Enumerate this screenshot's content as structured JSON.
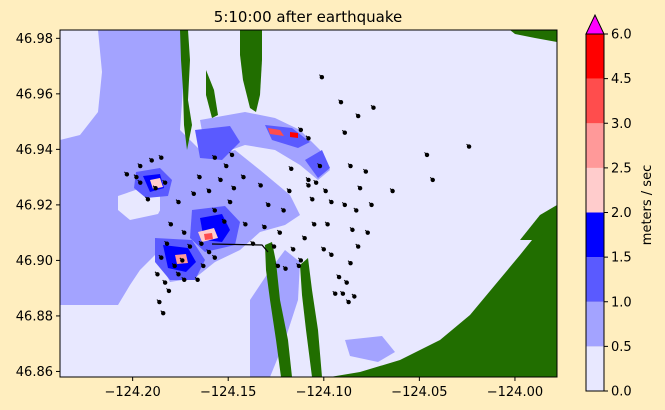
{
  "figure": {
    "background": "#ffeebf",
    "title": "5:10:00 after earthquake"
  },
  "chart_data": {
    "type": "heatmap",
    "title": "5:10:00 after earthquake",
    "xlabel": "",
    "ylabel": "",
    "xlim": [
      -124.238,
      -123.978
    ],
    "ylim": [
      46.858,
      46.983
    ],
    "xticks": [
      -124.2,
      -124.15,
      -124.1,
      -124.05,
      -124.0
    ],
    "xtick_labels": [
      "−124.20",
      "−124.15",
      "−124.10",
      "−124.05",
      "−124.00"
    ],
    "yticks": [
      46.86,
      46.88,
      46.9,
      46.92,
      46.94,
      46.96,
      46.98
    ],
    "ytick_labels": [
      "46.86",
      "46.88",
      "46.90",
      "46.92",
      "46.94",
      "46.96",
      "46.98"
    ],
    "colorbar": {
      "label": "meters / sec",
      "extend": "max",
      "over_color": "#ff00ff",
      "levels": [
        0.0,
        0.5,
        1.0,
        1.5,
        2.0,
        2.5,
        3.0,
        4.5,
        6.0
      ],
      "level_labels": [
        "0.0",
        "0.5",
        "1.0",
        "1.5",
        "2.0",
        "2.5",
        "3.0",
        "4.5",
        "6.0"
      ],
      "colors": [
        "#e8e8ff",
        "#a3a3ff",
        "#5a5aff",
        "#0000ff",
        "#ffcccc",
        "#ff9999",
        "#ff4d4d",
        "#ff0000"
      ]
    },
    "land_color": "#216e00",
    "gauges": [
      [
        -124.198,
        46.93
      ],
      [
        -124.196,
        46.934
      ],
      [
        -124.19,
        46.936
      ],
      [
        -124.185,
        46.937
      ],
      [
        -124.188,
        46.926
      ],
      [
        -124.192,
        46.922
      ],
      [
        -124.203,
        46.931
      ],
      [
        -124.196,
        46.928
      ],
      [
        -124.183,
        46.928
      ],
      [
        -124.176,
        46.921
      ],
      [
        -124.18,
        46.913
      ],
      [
        -124.173,
        46.91
      ],
      [
        -124.182,
        46.906
      ],
      [
        -124.185,
        46.901
      ],
      [
        -124.187,
        46.895
      ],
      [
        -124.183,
        46.892
      ],
      [
        -124.176,
        46.895
      ],
      [
        -124.174,
        46.9
      ],
      [
        -124.178,
        46.898
      ],
      [
        -124.181,
        46.889
      ],
      [
        -124.186,
        46.885
      ],
      [
        -124.184,
        46.881
      ],
      [
        -124.173,
        46.893
      ],
      [
        -124.17,
        46.905
      ],
      [
        -124.164,
        46.906
      ],
      [
        -124.16,
        46.903
      ],
      [
        -124.157,
        46.901
      ],
      [
        -124.163,
        46.898
      ],
      [
        -124.166,
        46.893
      ],
      [
        -124.168,
        46.924
      ],
      [
        -124.165,
        46.93
      ],
      [
        -124.16,
        46.925
      ],
      [
        -124.157,
        46.918
      ],
      [
        -124.152,
        46.914
      ],
      [
        -124.149,
        46.921
      ],
      [
        -124.154,
        46.929
      ],
      [
        -124.147,
        46.926
      ],
      [
        -124.151,
        46.934
      ],
      [
        -124.157,
        46.937
      ],
      [
        -124.148,
        46.938
      ],
      [
        -124.142,
        46.93
      ],
      [
        -124.141,
        46.913
      ],
      [
        -124.137,
        46.906
      ],
      [
        -124.133,
        46.927
      ],
      [
        -124.129,
        46.92
      ],
      [
        -124.131,
        46.912
      ],
      [
        -124.126,
        46.905
      ],
      [
        -124.123,
        46.91
      ],
      [
        -124.121,
        46.918
      ],
      [
        -124.118,
        46.925
      ],
      [
        -124.124,
        46.898
      ],
      [
        -124.116,
        46.904
      ],
      [
        -124.12,
        46.897
      ],
      [
        -124.113,
        46.898
      ],
      [
        -124.108,
        46.929
      ],
      [
        -124.106,
        46.922
      ],
      [
        -124.105,
        46.913
      ],
      [
        -124.11,
        46.908
      ],
      [
        -124.1,
        46.904
      ],
      [
        -124.098,
        46.913
      ],
      [
        -124.096,
        46.902
      ],
      [
        -124.092,
        46.894
      ],
      [
        -124.09,
        46.888
      ],
      [
        -124.088,
        46.892
      ],
      [
        -124.086,
        46.899
      ],
      [
        -124.094,
        46.888
      ],
      [
        -124.087,
        46.885
      ],
      [
        -124.084,
        46.887
      ],
      [
        -124.082,
        46.905
      ],
      [
        -124.085,
        46.911
      ],
      [
        -124.089,
        46.92
      ],
      [
        -124.081,
        46.926
      ],
      [
        -124.086,
        46.934
      ],
      [
        -124.078,
        46.932
      ],
      [
        -124.075,
        46.92
      ],
      [
        -124.077,
        46.91
      ],
      [
        -124.083,
        46.918
      ],
      [
        -124.064,
        46.925
      ],
      [
        -124.102,
        46.934
      ],
      [
        -124.108,
        46.927
      ],
      [
        -124.104,
        46.928
      ],
      [
        -124.101,
        46.966
      ],
      [
        -124.091,
        46.957
      ],
      [
        -124.089,
        46.946
      ],
      [
        -124.074,
        46.955
      ],
      [
        -124.082,
        46.952
      ],
      [
        -124.046,
        46.938
      ],
      [
        -124.043,
        46.929
      ],
      [
        -124.024,
        46.941
      ],
      [
        -124.112,
        46.947
      ],
      [
        -124.108,
        46.944
      ],
      [
        -124.096,
        46.921
      ],
      [
        -124.099,
        46.925
      ],
      [
        -124.112,
        46.9
      ],
      [
        -124.117,
        46.933
      ]
    ]
  }
}
